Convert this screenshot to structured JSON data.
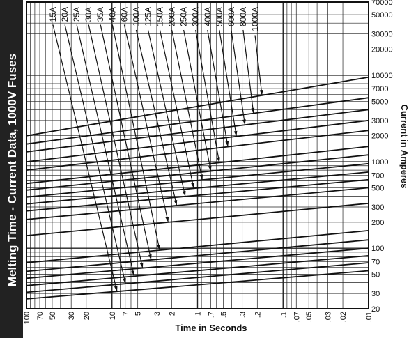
{
  "chart_data": {
    "type": "line",
    "title": "Melting Time - Current  Data, 1000V Fuses",
    "xlabel": "Time in Seconds",
    "ylabel": "Current in Amperes",
    "x_scale": "log-reversed",
    "y_scale": "log",
    "xlim": [
      100,
      0.01
    ],
    "ylim": [
      20,
      70000
    ],
    "x_tick_labels": [
      "100",
      "70",
      "50",
      "30",
      "20",
      "10",
      "7",
      "5",
      "3",
      "2",
      "1",
      ".7",
      ".5",
      ".3",
      ".2",
      ".1",
      ".07",
      ".05",
      ".03",
      ".02",
      ".01"
    ],
    "y_tick_labels": [
      "70000",
      "50000",
      "30000",
      "20000",
      "10000",
      "7000",
      "5000",
      "3000",
      "2000",
      "1000",
      "700",
      "500",
      "300",
      "200",
      "100",
      "70",
      "50",
      "30",
      "20"
    ],
    "grid": true,
    "ratings": [
      "15A",
      "20A",
      "25A",
      "30A",
      "35A",
      "40A",
      "60A",
      "100A",
      "125A",
      "150A",
      "200A",
      "250A",
      "300A",
      "400A",
      "500A",
      "600A",
      "800A",
      "1000A"
    ],
    "series": [
      {
        "name": "15A",
        "x": [
          100,
          0.01
        ],
        "y": [
          26,
          55
        ]
      },
      {
        "name": "20A",
        "x": [
          100,
          0.01
        ],
        "y": [
          31,
          68
        ]
      },
      {
        "name": "25A",
        "x": [
          100,
          0.01
        ],
        "y": [
          37,
          82
        ]
      },
      {
        "name": "30A",
        "x": [
          100,
          0.01
        ],
        "y": [
          45,
          100
        ]
      },
      {
        "name": "35A",
        "x": [
          100,
          0.01
        ],
        "y": [
          54,
          125
        ]
      },
      {
        "name": "40A",
        "x": [
          100,
          0.01
        ],
        "y": [
          68,
          160
        ]
      },
      {
        "name": "60A",
        "x": [
          100,
          0.01
        ],
        "y": [
          140,
          330
        ]
      },
      {
        "name": "100A",
        "x": [
          100,
          0.01
        ],
        "y": [
          215,
          500
        ]
      },
      {
        "name": "125A",
        "x": [
          100,
          0.01
        ],
        "y": [
          270,
          620
        ]
      },
      {
        "name": "150A",
        "x": [
          100,
          0.01
        ],
        "y": [
          325,
          760
        ]
      },
      {
        "name": "200A",
        "x": [
          100,
          0.01
        ],
        "y": [
          390,
          950
        ]
      },
      {
        "name": "250A",
        "x": [
          100,
          0.01
        ],
        "y": [
          470,
          1200
        ]
      },
      {
        "name": "300A",
        "x": [
          100,
          0.01
        ],
        "y": [
          560,
          1500
        ]
      },
      {
        "name": "400A",
        "x": [
          100,
          0.01
        ],
        "y": [
          800,
          2300
        ]
      },
      {
        "name": "500A",
        "x": [
          100,
          0.01
        ],
        "y": [
          1000,
          3000
        ]
      },
      {
        "name": "600A",
        "x": [
          100,
          0.01
        ],
        "y": [
          1300,
          4000
        ]
      },
      {
        "name": "800A",
        "x": [
          100,
          0.01
        ],
        "y": [
          1600,
          5500
        ]
      },
      {
        "name": "1000A",
        "x": [
          100,
          0.01
        ],
        "y": [
          2000,
          9500
        ]
      }
    ]
  }
}
